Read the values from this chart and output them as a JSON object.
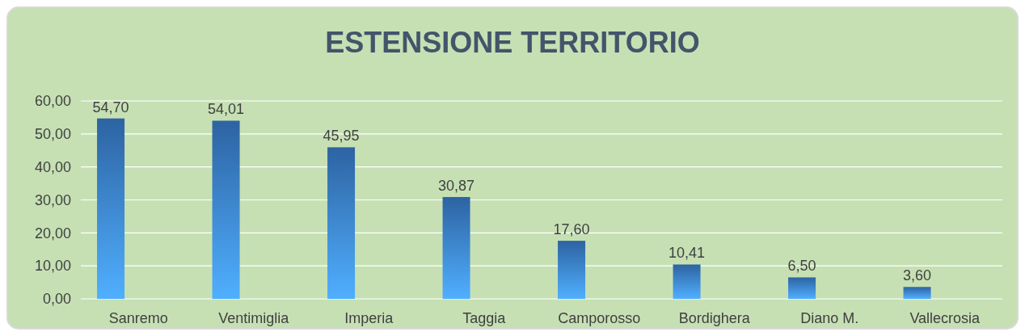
{
  "chart_data": {
    "type": "bar",
    "title": "ESTENSIONE TERRITORIO",
    "categories": [
      "Sanremo",
      "Ventimiglia",
      "Imperia",
      "Taggia",
      "Camporosso",
      "Bordighera",
      "Diano M.",
      "Vallecrosia"
    ],
    "values": [
      54.7,
      54.01,
      45.95,
      30.87,
      17.6,
      10.41,
      6.5,
      3.6
    ],
    "value_labels": [
      "54,70",
      "54,01",
      "45,95",
      "30,87",
      "17,60",
      "10,41",
      "6,50",
      "3,60"
    ],
    "color": "#3a7fd0",
    "ylim": [
      0,
      60
    ],
    "yticks": [
      {
        "value": 0,
        "label": "0,00"
      },
      {
        "value": 10,
        "label": "10,00"
      },
      {
        "value": 20,
        "label": "20,00"
      },
      {
        "value": 30,
        "label": "30,00"
      },
      {
        "value": 40,
        "label": "40,00"
      },
      {
        "value": 50,
        "label": "50,00"
      },
      {
        "value": 60,
        "label": "60,00"
      }
    ],
    "grid": true
  }
}
